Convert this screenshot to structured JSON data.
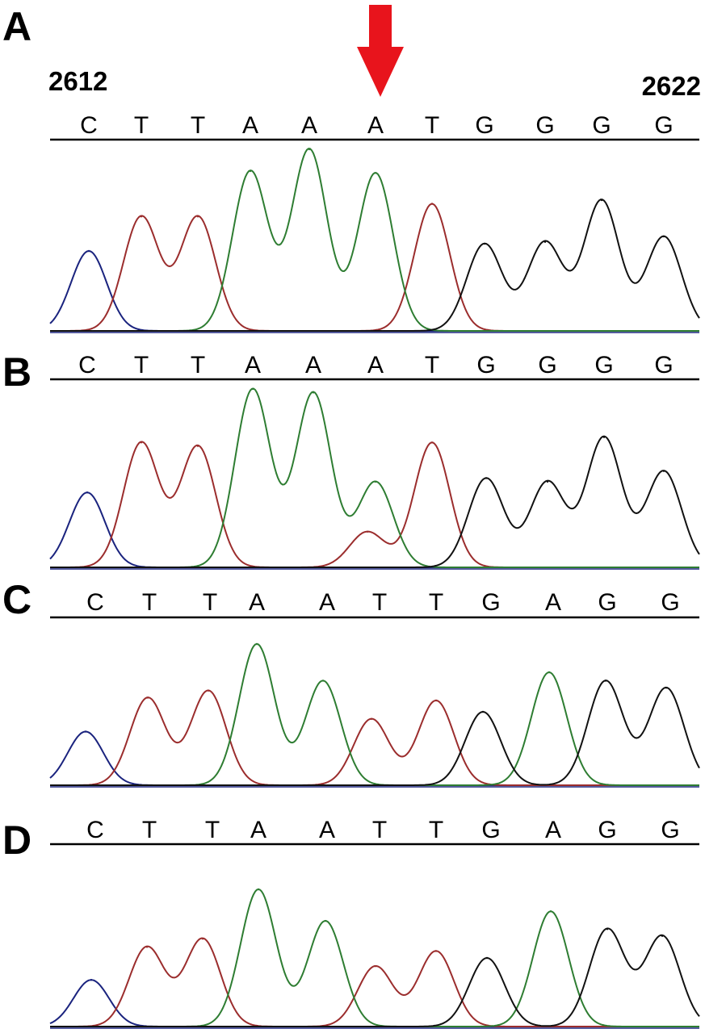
{
  "chart_data": {
    "type": "line",
    "description_keys": "Sanger sequencing chromatograms",
    "positions": {
      "start": "2612",
      "end": "2622"
    },
    "arrow": {
      "color": "#e8141c",
      "at_base_index": 5
    },
    "base_colors": {
      "A": "#2e7d32",
      "C": "#1a237e",
      "G": "#111111",
      "T": "#9b2d2d"
    },
    "panels": [
      {
        "letter": "A",
        "bases": [
          "C",
          "T",
          "T",
          "A",
          "A",
          "A",
          "T",
          "G",
          "G",
          "G",
          "G"
        ],
        "peaks": [
          {
            "base": "C",
            "height": 0.44
          },
          {
            "base": "T",
            "height": 0.63
          },
          {
            "base": "T",
            "height": 0.63
          },
          {
            "base": "A",
            "height": 0.88
          },
          {
            "base": "A",
            "height": 1.0
          },
          {
            "base": "A",
            "height": 0.87
          },
          {
            "base": "T",
            "height": 0.7
          },
          {
            "base": "G",
            "height": 0.48
          },
          {
            "base": "G",
            "height": 0.49
          },
          {
            "base": "G",
            "height": 0.72
          },
          {
            "base": "G",
            "height": 0.52
          }
        ],
        "minor_peaks": []
      },
      {
        "letter": "B",
        "bases": [
          "C",
          "T",
          "T",
          "A",
          "A",
          "A",
          "T",
          "G",
          "G",
          "G",
          "G"
        ],
        "peaks": [
          {
            "base": "C",
            "height": 0.42
          },
          {
            "base": "T",
            "height": 0.7
          },
          {
            "base": "T",
            "height": 0.68
          },
          {
            "base": "A",
            "height": 1.0
          },
          {
            "base": "A",
            "height": 0.98
          },
          {
            "base": "A",
            "height": 0.48
          },
          {
            "base": "T",
            "height": 0.7
          },
          {
            "base": "G",
            "height": 0.5
          },
          {
            "base": "G",
            "height": 0.48
          },
          {
            "base": "G",
            "height": 0.73
          },
          {
            "base": "G",
            "height": 0.54
          }
        ],
        "minor_peaks": [
          {
            "base": "T",
            "index": 5,
            "height": 0.2
          }
        ]
      },
      {
        "letter": "C",
        "bases": [
          "C",
          "T",
          "T",
          "A",
          "A",
          "T",
          "T",
          "G",
          "A",
          "G",
          "G"
        ],
        "peaks": [
          {
            "base": "C",
            "height": 0.38
          },
          {
            "base": "T",
            "height": 0.62
          },
          {
            "base": "T",
            "height": 0.67
          },
          {
            "base": "A",
            "height": 1.0
          },
          {
            "base": "A",
            "height": 0.74
          },
          {
            "base": "T",
            "height": 0.47
          },
          {
            "base": "T",
            "height": 0.6
          },
          {
            "base": "G",
            "height": 0.52
          },
          {
            "base": "A",
            "height": 0.8
          },
          {
            "base": "G",
            "height": 0.74
          },
          {
            "base": "G",
            "height": 0.69
          }
        ],
        "minor_peaks": []
      },
      {
        "letter": "D",
        "bases": [
          "C",
          "T",
          "T",
          "A",
          "A",
          "T",
          "T",
          "G",
          "A",
          "G",
          "G"
        ],
        "peaks": [
          {
            "base": "C",
            "height": 0.34
          },
          {
            "base": "T",
            "height": 0.58
          },
          {
            "base": "T",
            "height": 0.64
          },
          {
            "base": "A",
            "height": 1.0
          },
          {
            "base": "A",
            "height": 0.77
          },
          {
            "base": "T",
            "height": 0.44
          },
          {
            "base": "T",
            "height": 0.55
          },
          {
            "base": "G",
            "height": 0.5
          },
          {
            "base": "A",
            "height": 0.84
          },
          {
            "base": "G",
            "height": 0.71
          },
          {
            "base": "G",
            "height": 0.66
          }
        ],
        "minor_peaks": []
      }
    ]
  }
}
